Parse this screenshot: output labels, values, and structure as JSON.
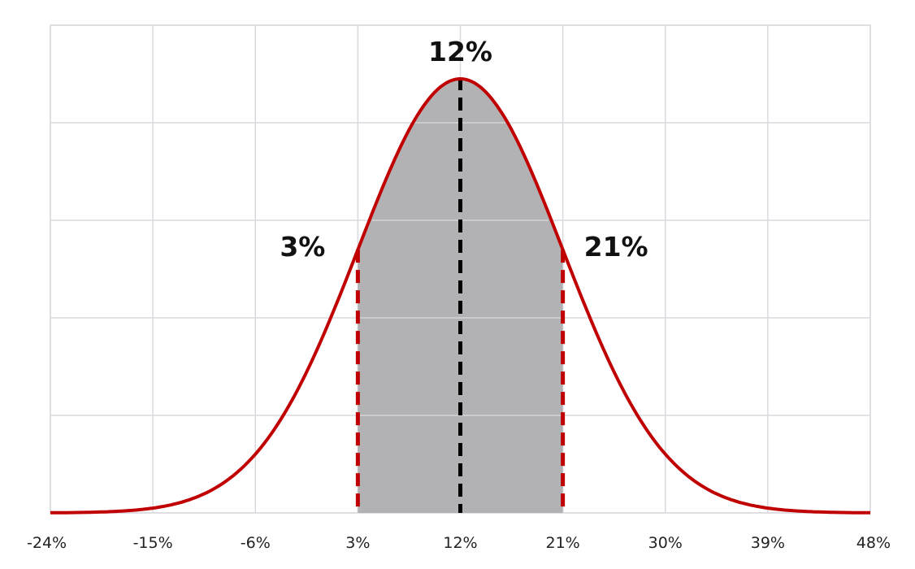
{
  "chart_data": {
    "type": "area",
    "x_tick_labels": [
      "-24%",
      "-15%",
      "-6%",
      "3%",
      "12%",
      "21%",
      "30%",
      "39%",
      "48%"
    ],
    "x_ticks": [
      -24,
      -15,
      -6,
      3,
      12,
      21,
      30,
      39,
      48
    ],
    "xlim": [
      -24,
      48
    ],
    "ylim": [
      0,
      5
    ],
    "y_gridlines": [
      0,
      1,
      2,
      3,
      4,
      5
    ],
    "grid": true,
    "distribution": {
      "mean": 12,
      "std": 9,
      "peak": 4.45
    },
    "shaded_interval": [
      3,
      21
    ],
    "annotations": [
      {
        "text": "12%",
        "x": 12,
        "y": 4.45
      },
      {
        "text": "3%",
        "x": 3,
        "y": 2.7
      },
      {
        "text": "21%",
        "x": 21,
        "y": 2.7
      }
    ],
    "colors": {
      "curve": "#c00000",
      "shade": "#b2b2b4",
      "mean_line": "#000000",
      "bound_lines": "#c00000",
      "grid": "#d9d9df"
    }
  }
}
